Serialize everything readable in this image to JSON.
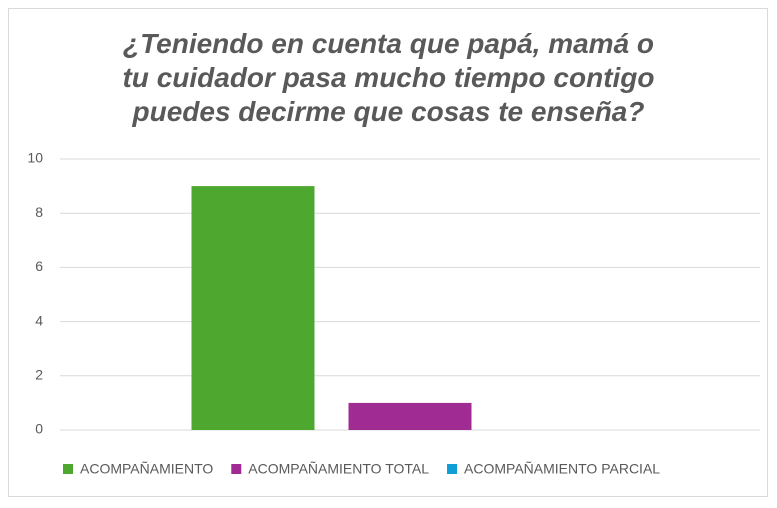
{
  "chart_data": {
    "type": "bar",
    "title": "¿Teniendo en cuenta que papá, mamá o\ntu cuidador pasa mucho tiempo contigo\npuedes decirme que cosas te enseña?",
    "categories": [
      null
    ],
    "series": [
      {
        "name": "ACOMPAÑAMIENTO",
        "color": "#4ea72e",
        "values": [
          9
        ]
      },
      {
        "name": "ACOMPAÑAMIENTO TOTAL",
        "color": "#a02b93",
        "values": [
          1
        ]
      },
      {
        "name": "ACOMPAÑAMIENTO PARCIAL",
        "color": "#0f9ed5",
        "values": [
          0
        ]
      }
    ],
    "ylim": [
      0,
      10
    ],
    "yticks": [
      0,
      2,
      4,
      6,
      8,
      10
    ],
    "grid": true,
    "legend": "bottom"
  }
}
